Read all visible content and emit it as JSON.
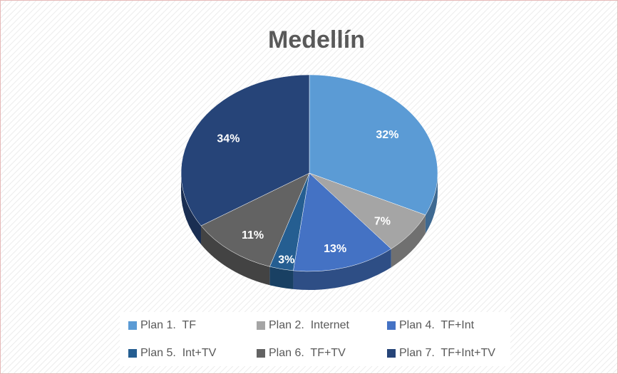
{
  "chart_data": {
    "type": "pie",
    "title": "Medellín",
    "categories": [
      "Plan 1.  TF",
      "Plan 2.  Internet",
      "Plan 4.  TF+Int",
      "Plan 5.  Int+TV",
      "Plan 6.  TF+TV",
      "Plan 7.  TF+Int+TV"
    ],
    "values": [
      32,
      7,
      13,
      3,
      11,
      34
    ],
    "value_labels": [
      "32%",
      "7%",
      "13%",
      "3%",
      "11%",
      "34%"
    ],
    "colors": [
      "#5b9bd5",
      "#a5a5a5",
      "#4472c4",
      "#255e91",
      "#636363",
      "#264478"
    ],
    "legend": "bottom"
  }
}
